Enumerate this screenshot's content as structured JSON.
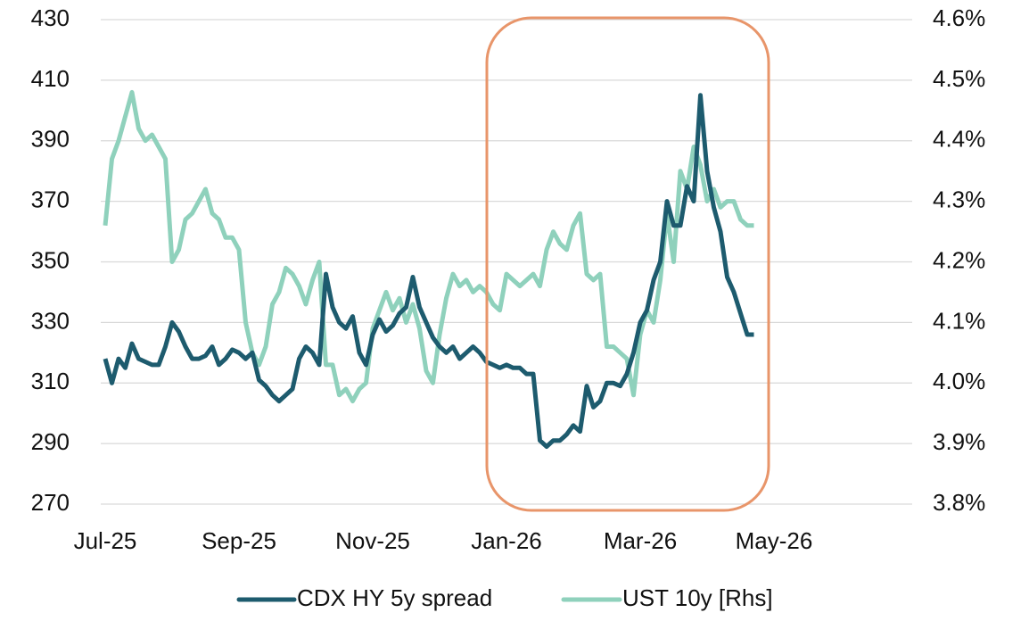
{
  "chart_data": {
    "type": "line",
    "categories": [
      "Jul-25",
      null,
      null,
      null,
      null,
      null,
      null,
      null,
      null,
      null,
      null,
      null,
      null,
      null,
      null,
      null,
      null,
      null,
      null,
      null,
      "Sep-25",
      null,
      null,
      null,
      null,
      null,
      null,
      null,
      null,
      null,
      null,
      null,
      null,
      null,
      null,
      null,
      null,
      null,
      null,
      null,
      "Nov-25",
      null,
      null,
      null,
      null,
      null,
      null,
      null,
      null,
      null,
      null,
      null,
      null,
      null,
      null,
      null,
      null,
      null,
      null,
      null,
      "Jan-26",
      null,
      null,
      null,
      null,
      null,
      null,
      null,
      null,
      null,
      null,
      null,
      null,
      null,
      null,
      null,
      null,
      null,
      null,
      null,
      "Mar-26",
      null,
      null,
      null,
      null,
      null,
      null,
      null,
      null,
      null,
      null,
      null,
      null,
      null,
      null,
      null,
      null,
      null,
      null,
      null,
      "May-26"
    ],
    "series": [
      {
        "name": "CDX HY 5y spread",
        "color": "#1d5b6e",
        "values": [
          318,
          310,
          318,
          315,
          323,
          318,
          317,
          316,
          316,
          322,
          330,
          327,
          322,
          318,
          318,
          319,
          322,
          316,
          318,
          321,
          320,
          318,
          320,
          311,
          309,
          306,
          304,
          306,
          308,
          318,
          322,
          320,
          316,
          346,
          335,
          330,
          328,
          332,
          320,
          316,
          326,
          331,
          327,
          329,
          333,
          335,
          345,
          335,
          330,
          325,
          322,
          320,
          322,
          318,
          320,
          322,
          320,
          317,
          316,
          315,
          316,
          315,
          315,
          313,
          313,
          291,
          289,
          291,
          291,
          293,
          296,
          294,
          309,
          302,
          304,
          310,
          310,
          309,
          313,
          320,
          330,
          334,
          344,
          350,
          370,
          362,
          362,
          375,
          370,
          405,
          380,
          368,
          360,
          345,
          340,
          333,
          326,
          326,
          null,
          null,
          null
        ]
      },
      {
        "name": "UST 10y [Rhs]",
        "color": "#8fd1bc",
        "axis": "y2",
        "values": [
          4.26,
          4.37,
          4.4,
          4.44,
          4.48,
          4.42,
          4.4,
          4.41,
          4.39,
          4.37,
          4.2,
          4.22,
          4.27,
          4.28,
          4.3,
          4.32,
          4.28,
          4.27,
          4.24,
          4.24,
          4.22,
          4.1,
          4.05,
          4.03,
          4.06,
          4.13,
          4.15,
          4.19,
          4.18,
          4.16,
          4.13,
          4.17,
          4.2,
          4.03,
          4.03,
          3.98,
          3.99,
          3.97,
          3.99,
          4.0,
          4.09,
          4.12,
          4.15,
          4.12,
          4.14,
          4.1,
          4.13,
          4.09,
          4.02,
          4.0,
          4.08,
          4.14,
          4.18,
          4.16,
          4.17,
          4.15,
          4.16,
          4.15,
          4.13,
          4.12,
          4.18,
          4.17,
          4.16,
          4.17,
          4.18,
          4.16,
          4.22,
          4.25,
          4.23,
          4.22,
          4.26,
          4.28,
          4.18,
          4.17,
          4.18,
          4.06,
          4.06,
          4.05,
          4.04,
          3.98,
          4.08,
          4.12,
          4.1,
          4.17,
          4.28,
          4.2,
          4.35,
          4.32,
          4.39,
          4.36,
          4.3,
          4.32,
          4.29,
          4.3,
          4.3,
          4.27,
          4.26,
          4.26,
          null,
          null,
          null
        ]
      }
    ],
    "ylim": [
      270,
      430
    ],
    "yticks": [
      270,
      290,
      310,
      330,
      350,
      370,
      390,
      410,
      430
    ],
    "y2lim": [
      3.8,
      4.6
    ],
    "y2ticks": [
      {
        "value": 3.8,
        "label": "3.8%"
      },
      {
        "value": 3.9,
        "label": "3.9%"
      },
      {
        "value": 4.0,
        "label": "4.0%"
      },
      {
        "value": 4.1,
        "label": "4.1%"
      },
      {
        "value": 4.2,
        "label": "4.2%"
      },
      {
        "value": 4.3,
        "label": "4.3%"
      },
      {
        "value": 4.4,
        "label": "4.4%"
      },
      {
        "value": 4.5,
        "label": "4.5%"
      },
      {
        "value": 4.6,
        "label": "4.6%"
      }
    ],
    "grid": true,
    "legend": "bottom"
  }
}
